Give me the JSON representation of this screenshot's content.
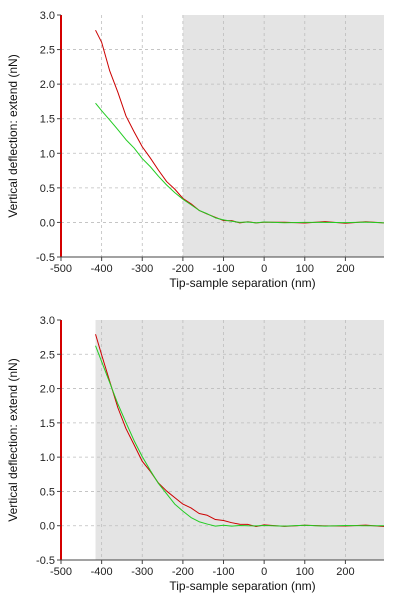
{
  "chart_data": [
    {
      "type": "line",
      "title": "",
      "xlabel": "Tip-sample separation (nm)",
      "ylabel": "Vertical deflection: extend (nN)",
      "xlim": [
        -500,
        295
      ],
      "ylim": [
        -0.5,
        3.0
      ],
      "x_ticks": [
        -500,
        -400,
        -300,
        -200,
        -100,
        0,
        100,
        200
      ],
      "y_ticks": [
        -0.5,
        0.0,
        0.5,
        1.0,
        1.5,
        2.0,
        2.5,
        3.0
      ],
      "x_tick_labels": [
        "-500",
        "-400",
        "-300",
        "-200",
        "-100",
        "0",
        "100",
        "200"
      ],
      "y_tick_labels": [
        "-0.5",
        "0.0",
        "0.5",
        "1.0",
        "1.5",
        "2.0",
        "2.5",
        "3.0"
      ],
      "grid": true,
      "shaded_region": [
        -200,
        295
      ],
      "shade_color": "#e4e4e4",
      "series": [
        {
          "color": "#cc0000",
          "x": [
            -415,
            -400,
            -380,
            -360,
            -340,
            -320,
            -300,
            -280,
            -260,
            -240,
            -220,
            -200,
            -180,
            -160,
            -140,
            -120,
            -100,
            -80,
            -60,
            -40,
            -20,
            0,
            50,
            100,
            150,
            200,
            250,
            295
          ],
          "y": [
            2.78,
            2.6,
            2.2,
            1.87,
            1.55,
            1.3,
            1.1,
            0.93,
            0.75,
            0.6,
            0.47,
            0.36,
            0.26,
            0.18,
            0.12,
            0.07,
            0.035,
            0.015,
            0.005,
            0.0,
            0.0,
            0.0,
            0.0,
            0.0,
            0.0,
            0.0,
            0.0,
            0.0
          ]
        },
        {
          "color": "#22cc22",
          "x": [
            -415,
            -400,
            -380,
            -360,
            -340,
            -320,
            -300,
            -280,
            -260,
            -240,
            -220,
            -200,
            -180,
            -160,
            -140,
            -120,
            -100,
            -80,
            -60,
            -40,
            -20,
            0,
            50,
            100,
            150,
            200,
            250,
            295
          ],
          "y": [
            1.72,
            1.62,
            1.48,
            1.34,
            1.2,
            1.07,
            0.93,
            0.8,
            0.67,
            0.54,
            0.43,
            0.34,
            0.25,
            0.18,
            0.12,
            0.07,
            0.035,
            0.015,
            0.005,
            0.0,
            0.0,
            0.0,
            0.0,
            0.0,
            0.0,
            0.0,
            0.0,
            0.0
          ]
        }
      ]
    },
    {
      "type": "line",
      "title": "",
      "xlabel": "Tip-sample separation (nm)",
      "ylabel": "Vertical deflection: extend (nN)",
      "xlim": [
        -500,
        295
      ],
      "ylim": [
        -0.5,
        3.0
      ],
      "x_ticks": [
        -500,
        -400,
        -300,
        -200,
        -100,
        0,
        100,
        200
      ],
      "y_ticks": [
        -0.5,
        0.0,
        0.5,
        1.0,
        1.5,
        2.0,
        2.5,
        3.0
      ],
      "x_tick_labels": [
        "-500",
        "-400",
        "-300",
        "-200",
        "-100",
        "0",
        "100",
        "200"
      ],
      "y_tick_labels": [
        "-0.5",
        "0.0",
        "0.5",
        "1.0",
        "1.5",
        "2.0",
        "2.5",
        "3.0"
      ],
      "grid": true,
      "shaded_region": [
        -415,
        295
      ],
      "shade_color": "#e4e4e4",
      "series": [
        {
          "color": "#cc0000",
          "x": [
            -415,
            -400,
            -380,
            -360,
            -340,
            -320,
            -300,
            -280,
            -260,
            -240,
            -220,
            -200,
            -180,
            -160,
            -140,
            -120,
            -100,
            -80,
            -60,
            -40,
            -20,
            0,
            50,
            100,
            150,
            200,
            250,
            295
          ],
          "y": [
            2.78,
            2.5,
            2.1,
            1.72,
            1.42,
            1.17,
            0.95,
            0.78,
            0.63,
            0.5,
            0.41,
            0.32,
            0.25,
            0.19,
            0.14,
            0.1,
            0.07,
            0.045,
            0.025,
            0.01,
            0.0,
            0.0,
            0.0,
            0.0,
            0.0,
            0.0,
            0.0,
            0.0
          ]
        },
        {
          "color": "#22cc22",
          "x": [
            -415,
            -400,
            -380,
            -360,
            -340,
            -320,
            -300,
            -280,
            -260,
            -240,
            -220,
            -200,
            -180,
            -160,
            -140,
            -120,
            -100,
            -80,
            -60,
            -40,
            -20,
            0,
            50,
            100,
            150,
            200,
            250,
            295
          ],
          "y": [
            2.62,
            2.4,
            2.08,
            1.78,
            1.5,
            1.24,
            1.01,
            0.8,
            0.62,
            0.46,
            0.32,
            0.21,
            0.12,
            0.06,
            0.02,
            0.0,
            0.0,
            0.0,
            0.0,
            0.0,
            0.0,
            0.0,
            0.0,
            0.0,
            0.0,
            0.0,
            0.0,
            0.0
          ]
        }
      ]
    }
  ]
}
